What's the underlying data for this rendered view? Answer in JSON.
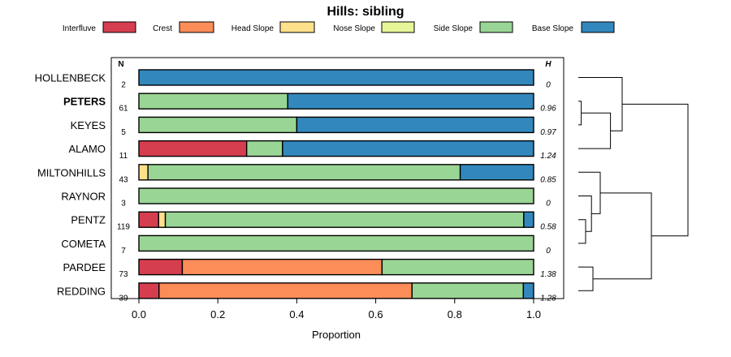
{
  "chart_data": {
    "type": "bar",
    "orientation": "horizontal",
    "stacked": true,
    "title": "Hills: sibling",
    "xlabel": "Proportion",
    "ylabel": "",
    "xlim": [
      0,
      1
    ],
    "xticks": [
      "0.0",
      "0.2",
      "0.4",
      "0.6",
      "0.8",
      "1.0"
    ],
    "xtick_values": [
      0,
      0.2,
      0.4,
      0.6,
      0.8,
      1.0
    ],
    "n_header": "N",
    "h_header": "H",
    "legend_position": "top",
    "legend": [
      {
        "name": "Interfluve",
        "color": "#d53e4f"
      },
      {
        "name": "Crest",
        "color": "#fc8d59"
      },
      {
        "name": "Head Slope",
        "color": "#fee08b"
      },
      {
        "name": "Nose Slope",
        "color": "#e6f598"
      },
      {
        "name": "Side Slope",
        "color": "#99d594"
      },
      {
        "name": "Base Slope",
        "color": "#3288bd"
      }
    ],
    "categories": [
      "HOLLENBECK",
      "PETERS",
      "KEYES",
      "ALAMO",
      "MILTONHILLS",
      "RAYNOR",
      "PENTZ",
      "COMETA",
      "PARDEE",
      "REDDING"
    ],
    "highlighted": "PETERS",
    "n": [
      "2",
      "61",
      "5",
      "11",
      "43",
      "3",
      "119",
      "7",
      "73",
      "39"
    ],
    "h": [
      "0",
      "0.96",
      "0.97",
      "1.24",
      "0.85",
      "0",
      "0.58",
      "0",
      "1.38",
      "1.28"
    ],
    "series": [
      {
        "name": "Interfluve",
        "values": [
          0,
          0,
          0,
          0.273,
          0,
          0,
          0.05,
          0,
          0.11,
          0.051
        ]
      },
      {
        "name": "Crest",
        "values": [
          0,
          0,
          0,
          0,
          0,
          0,
          0,
          0,
          0.506,
          0.641
        ]
      },
      {
        "name": "Head Slope",
        "values": [
          0,
          0,
          0,
          0,
          0.023,
          0,
          0.017,
          0,
          0,
          0
        ]
      },
      {
        "name": "Nose Slope",
        "values": [
          0,
          0,
          0,
          0,
          0,
          0,
          0,
          0,
          0,
          0
        ]
      },
      {
        "name": "Side Slope",
        "values": [
          0,
          0.377,
          0.4,
          0.091,
          0.791,
          1.0,
          0.908,
          1.0,
          0.384,
          0.282
        ]
      },
      {
        "name": "Base Slope",
        "values": [
          1.0,
          0.623,
          0.6,
          0.636,
          0.186,
          0,
          0.025,
          0,
          0,
          0.026
        ]
      }
    ],
    "dendrogram": {
      "type": "dendrogram",
      "orientation": "right",
      "merge_order": [
        [
          "PETERS",
          "KEYES"
        ],
        [
          "PETERS+KEYES",
          "ALAMO"
        ],
        [
          "HOLLENBECK",
          "PETERS+KEYES+ALAMO"
        ],
        [
          "PENTZ",
          "COMETA"
        ],
        [
          "RAYNOR",
          "PENTZ+COMETA"
        ],
        [
          "MILTONHILLS",
          "RAYNOR+PENTZ+COMETA"
        ],
        [
          "PARDEE",
          "REDDING"
        ],
        [
          "MILTONHILLS+RAYNOR+PENTZ+COMETA",
          "PARDEE+REDDING"
        ],
        [
          "group1",
          "group2"
        ]
      ],
      "merge_heights": [
        0.02,
        0.22,
        0.3,
        0.05,
        0.09,
        0.15,
        0.1,
        0.5,
        0.75
      ]
    }
  }
}
